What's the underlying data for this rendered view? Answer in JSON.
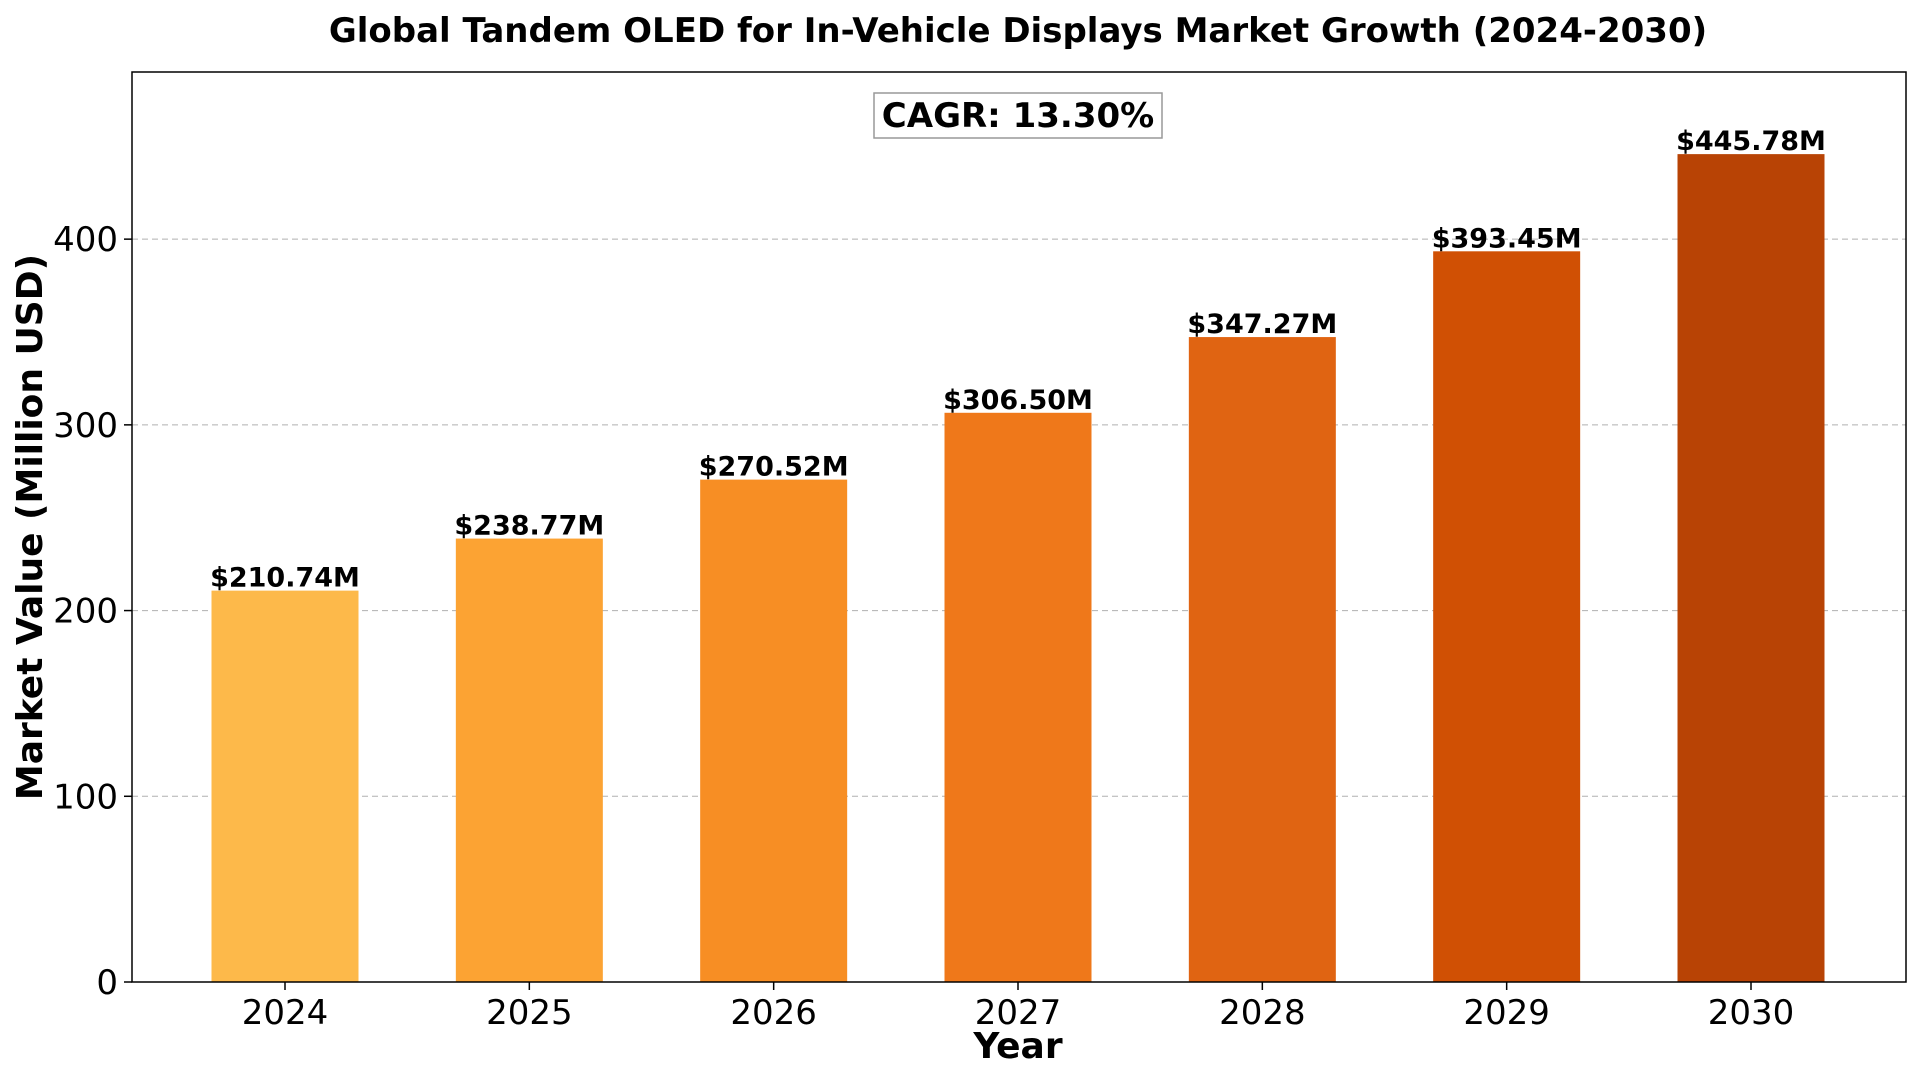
{
  "chart_data": {
    "type": "bar",
    "title": "Global Tandem OLED for In-Vehicle Displays Market Growth (2024-2030)",
    "xlabel": "Year",
    "ylabel": "Market Value (Million USD)",
    "categories": [
      "2024",
      "2025",
      "2026",
      "2027",
      "2028",
      "2029",
      "2030"
    ],
    "values": [
      210.74,
      238.77,
      270.52,
      306.5,
      347.27,
      393.45,
      445.78
    ],
    "data_labels": [
      "$210.74M",
      "$238.77M",
      "$270.52M",
      "$306.50M",
      "$347.27M",
      "$393.45M",
      "$445.78M"
    ],
    "bar_colors": [
      "#fdb94a",
      "#fca333",
      "#f78e24",
      "#ef781a",
      "#e06412",
      "#d05004",
      "#b84305"
    ],
    "ylim": [
      0,
      490
    ],
    "yticks": [
      0,
      100,
      200,
      300,
      400
    ],
    "grid": "y-dashed",
    "annotation": "CAGR: 13.30%"
  }
}
